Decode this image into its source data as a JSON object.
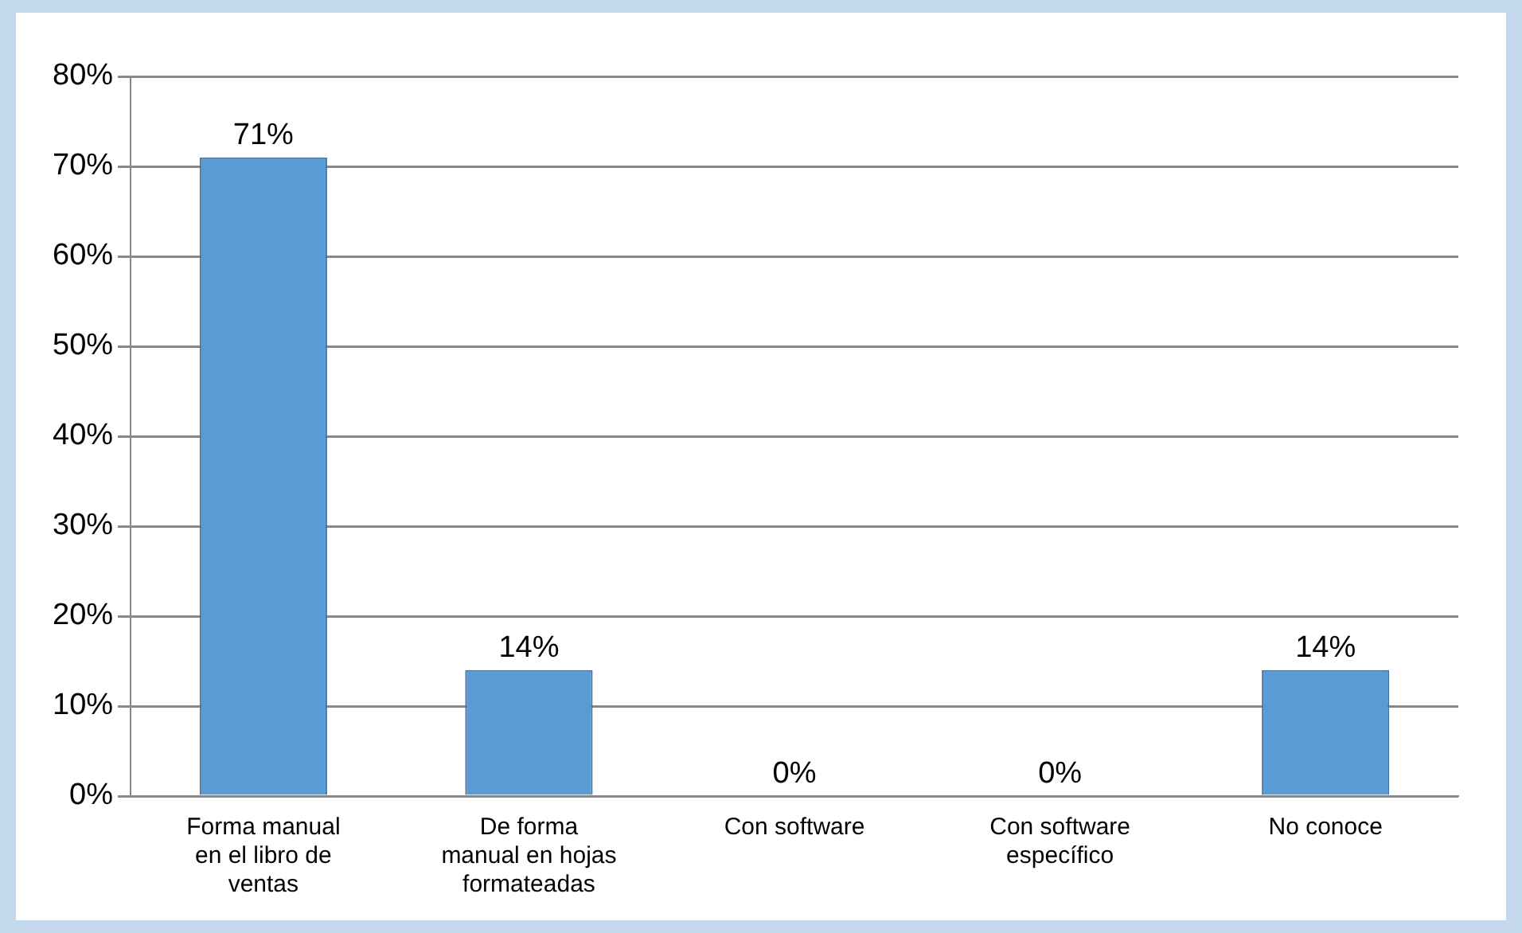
{
  "chart_data": {
    "type": "bar",
    "categories": [
      "Forma manual en el libro de ventas",
      "De forma manual en hojas formateadas",
      "Con software",
      "Con software específico",
      "No conoce"
    ],
    "values": [
      71,
      14,
      0,
      0,
      14
    ],
    "value_labels": [
      "71%",
      "14%",
      "0%",
      "0%",
      "14%"
    ],
    "color": "#5b9bd5",
    "ylim": [
      0,
      80
    ],
    "yticks": [
      {
        "value": 0,
        "label": "0%"
      },
      {
        "value": 10,
        "label": "10%"
      },
      {
        "value": 20,
        "label": "20%"
      },
      {
        "value": 30,
        "label": "30%"
      },
      {
        "value": 40,
        "label": "40%"
      },
      {
        "value": 50,
        "label": "50%"
      },
      {
        "value": 60,
        "label": "60%"
      },
      {
        "value": 70,
        "label": "70%"
      },
      {
        "value": 80,
        "label": "80%"
      }
    ],
    "grid": "y"
  }
}
